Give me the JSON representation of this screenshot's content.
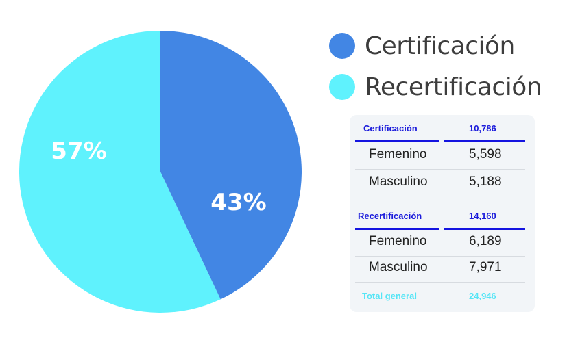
{
  "chart_data": {
    "type": "pie",
    "slices": [
      {
        "label": "Certificación",
        "value": 43,
        "display": "43%",
        "color": "#4286e4"
      },
      {
        "label": "Recertificación",
        "value": 57,
        "display": "57%",
        "color": "#5ff2fd"
      }
    ]
  },
  "legend": [
    {
      "label": "Certificación",
      "color": "#4286e4"
    },
    {
      "label": "Recertificación",
      "color": "#5ff2fd"
    }
  ],
  "summary_table": {
    "certificacion": {
      "label": "Certificación",
      "total": "10,786",
      "rows": [
        {
          "label": "Femenino",
          "value": "5,598"
        },
        {
          "label": "Masculino",
          "value": "5,188"
        }
      ]
    },
    "recertificacion": {
      "label": "Recertificación",
      "total": "14,160",
      "rows": [
        {
          "label": "Femenino",
          "value": "6,189"
        },
        {
          "label": "Masculino",
          "value": "7,971"
        }
      ]
    },
    "total": {
      "label": "Total general",
      "value": "24,946"
    }
  }
}
